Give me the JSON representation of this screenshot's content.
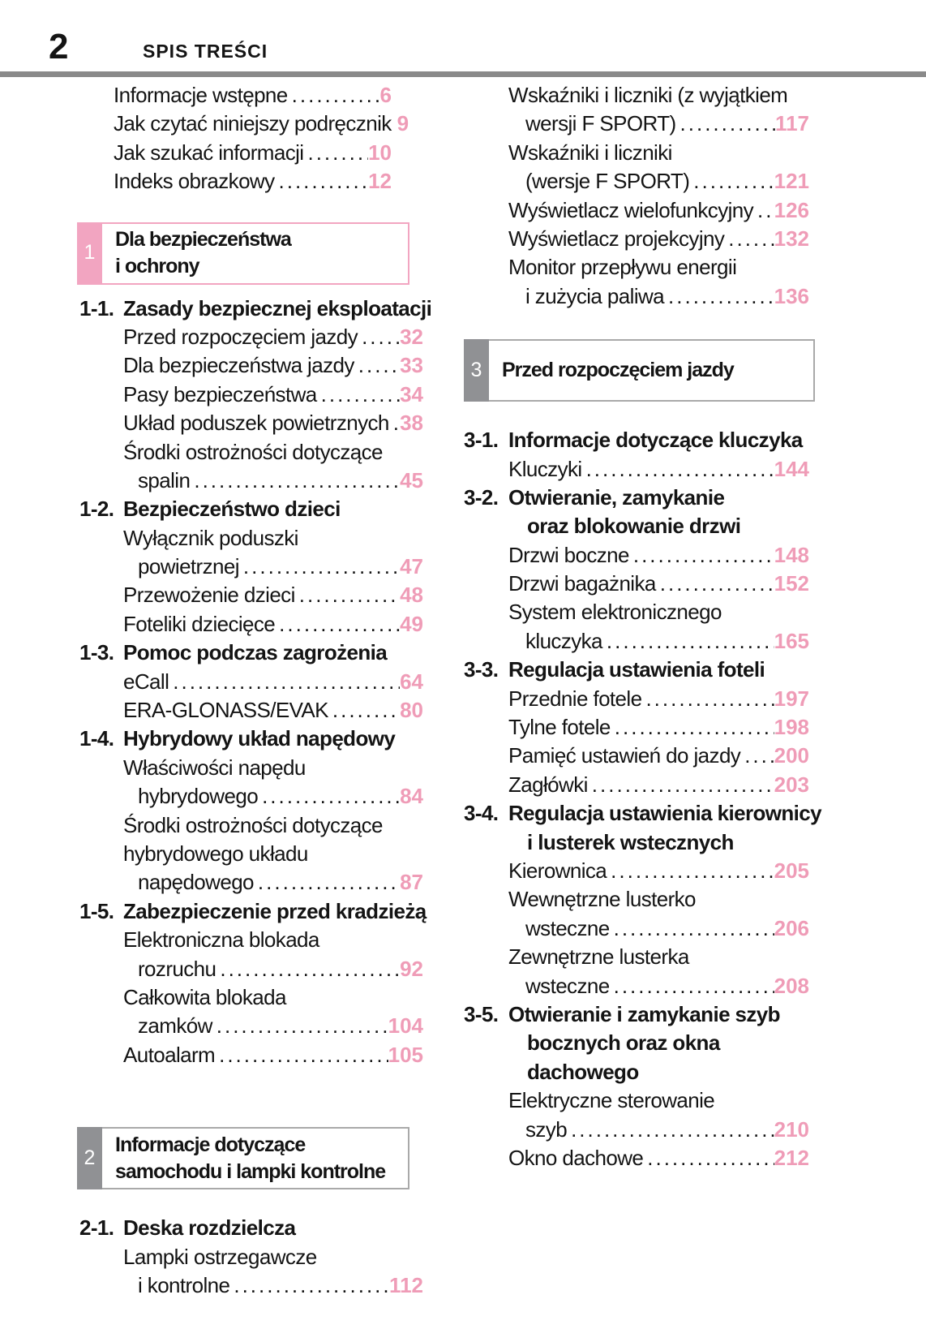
{
  "page": {
    "number": "2",
    "header": "SPIS TREŚCI"
  },
  "colors": {
    "pink_text": "#ef9cb7",
    "pink_accent": "#f2a5c1",
    "gray_accent": "#909194",
    "border_gray": "#a9a9a9",
    "rule_gray": "#8a8a8a"
  },
  "left_column": {
    "blocks": [
      {
        "type": "intro",
        "entries": [
          {
            "label": "Informacje wstępne",
            "page": "6"
          },
          {
            "label": "Jak czytać niniejszy podręcznik",
            "page": "9"
          },
          {
            "label": "Jak szukać informacji",
            "page": "10"
          },
          {
            "label": "Indeks obrazkowy",
            "page": "12"
          }
        ]
      },
      {
        "type": "chapter",
        "num": "1",
        "accent": "pink",
        "title_lines": [
          "Dla bezpieczeństwa",
          "i ochrony"
        ]
      },
      {
        "type": "heading",
        "num": "1-1.",
        "lines": [
          "Zasady bezpiecznej eksploatacji"
        ]
      },
      {
        "type": "entries",
        "items": [
          {
            "pre": [],
            "label": "Przed rozpoczęciem jazdy",
            "page": "32",
            "wrap": false
          },
          {
            "pre": [],
            "label": "Dla bezpieczeństwa jazdy",
            "page": "33",
            "wrap": false
          },
          {
            "pre": [],
            "label": "Pasy bezpieczeństwa",
            "page": "34",
            "wrap": false
          },
          {
            "pre": [],
            "label": "Układ poduszek powietrznych",
            "page": "38",
            "wrap": false
          },
          {
            "pre": [
              "Środki ostrożności dotyczące"
            ],
            "label": "spalin",
            "page": "45",
            "wrap": true
          }
        ]
      },
      {
        "type": "heading",
        "num": "1-2.",
        "lines": [
          "Bezpieczeństwo dzieci"
        ]
      },
      {
        "type": "entries",
        "items": [
          {
            "pre": [
              "Wyłącznik poduszki"
            ],
            "label": "powietrznej",
            "page": "47",
            "wrap": true
          },
          {
            "pre": [],
            "label": "Przewożenie dzieci",
            "page": "48",
            "wrap": false
          },
          {
            "pre": [],
            "label": "Foteliki dziecięce",
            "page": "49",
            "wrap": false
          }
        ]
      },
      {
        "type": "heading",
        "num": "1-3.",
        "lines": [
          "Pomoc podczas zagrożenia"
        ]
      },
      {
        "type": "entries",
        "items": [
          {
            "pre": [],
            "label": "eCall",
            "page": "64",
            "wrap": false
          },
          {
            "pre": [],
            "label": "ERA-GLONASS/EVAK",
            "page": "80",
            "wrap": false
          }
        ]
      },
      {
        "type": "heading",
        "num": "1-4.",
        "lines": [
          "Hybrydowy układ napędowy"
        ]
      },
      {
        "type": "entries",
        "items": [
          {
            "pre": [
              "Właściwości napędu"
            ],
            "label": "hybrydowego",
            "page": "84",
            "wrap": true
          },
          {
            "pre": [
              "Środki ostrożności dotyczące",
              "hybrydowego układu"
            ],
            "label": "napędowego",
            "page": "87",
            "wrap": true
          }
        ]
      },
      {
        "type": "heading",
        "num": "1-5.",
        "lines": [
          "Zabezpieczenie przed kradzieżą"
        ]
      },
      {
        "type": "entries",
        "items": [
          {
            "pre": [
              "Elektroniczna blokada"
            ],
            "label": "rozruchu",
            "page": "92",
            "wrap": true
          },
          {
            "pre": [
              "Całkowita blokada"
            ],
            "label": "zamków",
            "page": "104",
            "wrap": true
          },
          {
            "pre": [],
            "label": "Autoalarm",
            "page": "105",
            "wrap": false
          }
        ]
      },
      {
        "type": "chapter",
        "num": "2",
        "accent": "gray",
        "title_lines": [
          "Informacje dotyczące",
          "samochodu i lampki kontrolne"
        ]
      },
      {
        "type": "heading",
        "num": "2-1.",
        "lines": [
          "Deska rozdzielcza"
        ]
      },
      {
        "type": "entries",
        "items": [
          {
            "pre": [
              "Lampki ostrzegawcze"
            ],
            "label": "i kontrolne",
            "page": "112",
            "wrap": true
          }
        ]
      }
    ]
  },
  "right_column": {
    "blocks": [
      {
        "type": "entries",
        "items": [
          {
            "pre": [
              "Wskaźniki i liczniki (z wyjątkiem"
            ],
            "label": "wersji F SPORT)",
            "page": "117",
            "wrap": true
          },
          {
            "pre": [
              "Wskaźniki i liczniki"
            ],
            "label": "(wersje F SPORT)",
            "page": "121",
            "wrap": true
          },
          {
            "pre": [],
            "label": "Wyświetlacz wielofunkcyjny",
            "page": "126",
            "wrap": false
          },
          {
            "pre": [],
            "label": "Wyświetlacz projekcyjny",
            "page": "132",
            "wrap": false
          },
          {
            "pre": [
              "Monitor przepływu energii"
            ],
            "label": "i zużycia paliwa",
            "page": "136",
            "wrap": true
          }
        ]
      },
      {
        "type": "chapter",
        "num": "3",
        "accent": "gray",
        "title_lines": [
          "Przed rozpoczęciem jazdy"
        ]
      },
      {
        "type": "heading",
        "num": "3-1.",
        "lines": [
          "Informacje dotyczące kluczyka"
        ]
      },
      {
        "type": "entries",
        "items": [
          {
            "pre": [],
            "label": "Kluczyki",
            "page": "144",
            "wrap": false
          }
        ]
      },
      {
        "type": "heading",
        "num": "3-2.",
        "lines": [
          "Otwieranie, zamykanie",
          "oraz blokowanie drzwi"
        ]
      },
      {
        "type": "entries",
        "items": [
          {
            "pre": [],
            "label": "Drzwi boczne",
            "page": "148",
            "wrap": false
          },
          {
            "pre": [],
            "label": "Drzwi bagażnika",
            "page": "152",
            "wrap": false
          },
          {
            "pre": [
              "System elektronicznego"
            ],
            "label": "kluczyka",
            "page": "165",
            "wrap": true
          }
        ]
      },
      {
        "type": "heading",
        "num": "3-3.",
        "lines": [
          "Regulacja ustawienia foteli"
        ]
      },
      {
        "type": "entries",
        "items": [
          {
            "pre": [],
            "label": "Przednie fotele",
            "page": "197",
            "wrap": false
          },
          {
            "pre": [],
            "label": "Tylne fotele",
            "page": "198",
            "wrap": false
          },
          {
            "pre": [],
            "label": "Pamięć ustawień do jazdy",
            "page": "200",
            "wrap": false
          },
          {
            "pre": [],
            "label": "Zagłówki",
            "page": "203",
            "wrap": false
          }
        ]
      },
      {
        "type": "heading",
        "num": "3-4.",
        "lines": [
          "Regulacja ustawienia kierownicy",
          "i lusterek wstecznych"
        ]
      },
      {
        "type": "entries",
        "items": [
          {
            "pre": [],
            "label": "Kierownica",
            "page": "205",
            "wrap": false
          },
          {
            "pre": [
              "Wewnętrzne lusterko"
            ],
            "label": "wsteczne",
            "page": "206",
            "wrap": true
          },
          {
            "pre": [
              "Zewnętrzne lusterka"
            ],
            "label": "wsteczne",
            "page": "208",
            "wrap": true
          }
        ]
      },
      {
        "type": "heading",
        "num": "3-5.",
        "lines": [
          "Otwieranie i zamykanie szyb",
          "bocznych oraz okna",
          "dachowego"
        ]
      },
      {
        "type": "entries",
        "items": [
          {
            "pre": [
              "Elektryczne sterowanie"
            ],
            "label": "szyb",
            "page": "210",
            "wrap": true
          },
          {
            "pre": [],
            "label": "Okno dachowe",
            "page": "212",
            "wrap": false
          }
        ]
      }
    ]
  }
}
